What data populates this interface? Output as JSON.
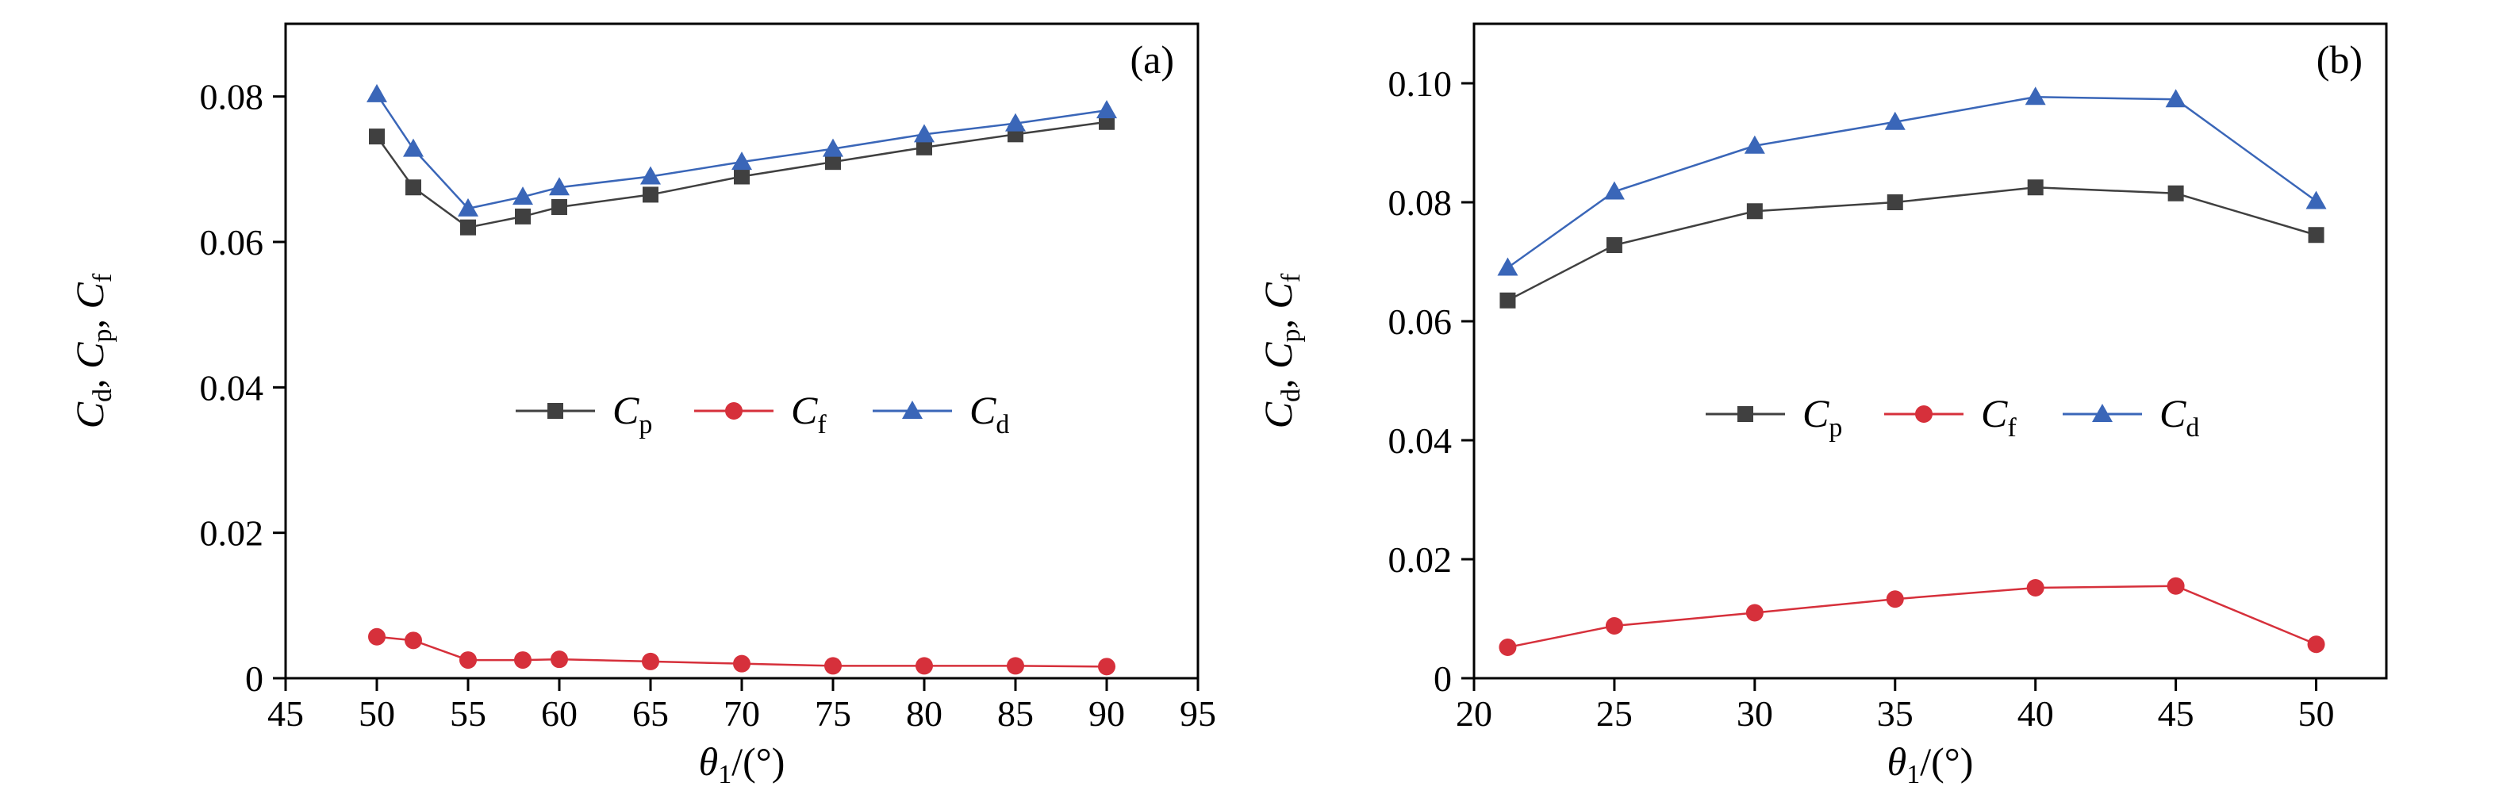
{
  "chart_data": [
    {
      "type": "line",
      "panel_label": "(a)",
      "xlabel_symbol": "θ",
      "xlabel_subscript": "1",
      "xlabel_unit": "/(°)",
      "ylabel_parts": [
        "C",
        "d",
        ", ",
        "C",
        "p",
        ", ",
        "C",
        "f"
      ],
      "xlim": [
        45,
        95
      ],
      "ylim": [
        0,
        0.09
      ],
      "xticks": [
        45,
        50,
        55,
        60,
        65,
        70,
        75,
        80,
        85,
        90,
        95
      ],
      "xtick_labels": [
        "45",
        "50",
        "55",
        "60",
        "65",
        "70",
        "75",
        "80",
        "85",
        "90",
        "95"
      ],
      "yticks": [
        0,
        0.02,
        0.04,
        0.06,
        0.08
      ],
      "ytick_labels": [
        "0",
        "0.02",
        "0.04",
        "0.06",
        "0.08"
      ],
      "legend_position": "center",
      "series": [
        {
          "name": "Cp",
          "symbol": "C",
          "subscript": "p",
          "marker": "square",
          "color": "#404040",
          "x": [
            50,
            52,
            55,
            58,
            60,
            65,
            70,
            75,
            80,
            85,
            90
          ],
          "y": [
            0.0745,
            0.0675,
            0.062,
            0.0635,
            0.0648,
            0.0665,
            0.069,
            0.071,
            0.073,
            0.0748,
            0.0765
          ]
        },
        {
          "name": "Cf",
          "symbol": "C",
          "subscript": "f",
          "marker": "circle",
          "color": "#d6303b",
          "x": [
            50,
            52,
            55,
            58,
            60,
            65,
            70,
            75,
            80,
            85,
            90
          ],
          "y": [
            0.0057,
            0.0052,
            0.0025,
            0.0025,
            0.0026,
            0.0023,
            0.002,
            0.0017,
            0.0017,
            0.0017,
            0.0016
          ]
        },
        {
          "name": "Cd",
          "symbol": "C",
          "subscript": "d",
          "marker": "triangle",
          "color": "#3a66b8",
          "x": [
            50,
            52,
            55,
            58,
            60,
            65,
            70,
            75,
            80,
            85,
            90
          ],
          "y": [
            0.0803,
            0.0728,
            0.0646,
            0.0662,
            0.0675,
            0.069,
            0.071,
            0.0728,
            0.0748,
            0.0763,
            0.0781
          ]
        }
      ]
    },
    {
      "type": "line",
      "panel_label": "(b)",
      "xlabel_symbol": "θ",
      "xlabel_subscript": "1",
      "xlabel_unit": "/(°)",
      "ylabel_parts": [
        "C",
        "d",
        ", ",
        "C",
        "p",
        ", ",
        "C",
        "f"
      ],
      "xlim": [
        20,
        52.5
      ],
      "ylim": [
        0,
        0.11
      ],
      "xticks": [
        20,
        25,
        30,
        35,
        40,
        45,
        50
      ],
      "xtick_labels": [
        "20",
        "25",
        "30",
        "35",
        "40",
        "45",
        "50"
      ],
      "yticks": [
        0,
        0.02,
        0.04,
        0.06,
        0.08,
        0.1
      ],
      "ytick_labels": [
        "0",
        "0.02",
        "0.04",
        "0.06",
        "0.08",
        "0.10"
      ],
      "legend_position": "center",
      "series": [
        {
          "name": "Cp",
          "symbol": "C",
          "subscript": "p",
          "marker": "square",
          "color": "#404040",
          "x": [
            21.2,
            25,
            30,
            35,
            40,
            45,
            50
          ],
          "y": [
            0.0635,
            0.0728,
            0.0785,
            0.08,
            0.0825,
            0.0815,
            0.0745
          ]
        },
        {
          "name": "Cf",
          "symbol": "C",
          "subscript": "f",
          "marker": "circle",
          "color": "#d6303b",
          "x": [
            21.2,
            25,
            30,
            35,
            40,
            45,
            50
          ],
          "y": [
            0.0052,
            0.0088,
            0.011,
            0.0133,
            0.0152,
            0.0155,
            0.0057
          ]
        },
        {
          "name": "Cd",
          "symbol": "C",
          "subscript": "d",
          "marker": "triangle",
          "color": "#3a66b8",
          "x": [
            21.2,
            25,
            30,
            35,
            40,
            45,
            50
          ],
          "y": [
            0.069,
            0.0818,
            0.0895,
            0.0935,
            0.0977,
            0.0973,
            0.0802
          ]
        }
      ]
    }
  ]
}
